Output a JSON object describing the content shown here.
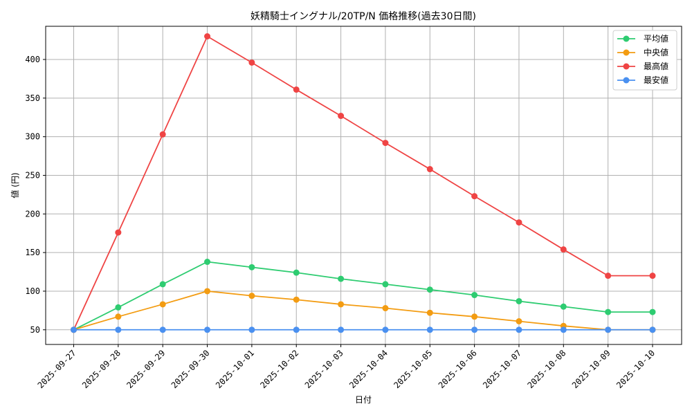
{
  "chart_data": {
    "type": "line",
    "title": "妖精騎士イングナル/20TP/N 価格推移(過去30日間)",
    "xlabel": "日付",
    "ylabel": "値 (円)",
    "categories": [
      "2025-09-27",
      "2025-09-28",
      "2025-09-29",
      "2025-09-30",
      "2025-10-01",
      "2025-10-02",
      "2025-10-03",
      "2025-10-04",
      "2025-10-05",
      "2025-10-06",
      "2025-10-07",
      "2025-10-08",
      "2025-10-09",
      "2025-10-10"
    ],
    "ylim": [
      31,
      443
    ],
    "yticks": [
      50,
      100,
      150,
      200,
      250,
      300,
      350,
      400
    ],
    "grid": true,
    "legend_position": "top-right",
    "series": [
      {
        "name": "平均値",
        "color": "#2ecc71",
        "values": [
          50,
          79,
          109,
          138,
          131,
          124,
          116,
          109,
          102,
          95,
          87,
          80,
          73,
          73
        ]
      },
      {
        "name": "中央値",
        "color": "#f39c12",
        "values": [
          50,
          67,
          83,
          100,
          94,
          89,
          83,
          78,
          72,
          67,
          61,
          55,
          50,
          50
        ]
      },
      {
        "name": "最高値",
        "color": "#ef4444",
        "values": [
          50,
          176,
          303,
          430,
          396,
          361,
          327,
          292,
          258,
          223,
          189,
          154,
          120,
          120
        ]
      },
      {
        "name": "最安値",
        "color": "#4a90f0",
        "values": [
          50,
          50,
          50,
          50,
          50,
          50,
          50,
          50,
          50,
          50,
          50,
          50,
          50,
          50
        ]
      }
    ]
  }
}
